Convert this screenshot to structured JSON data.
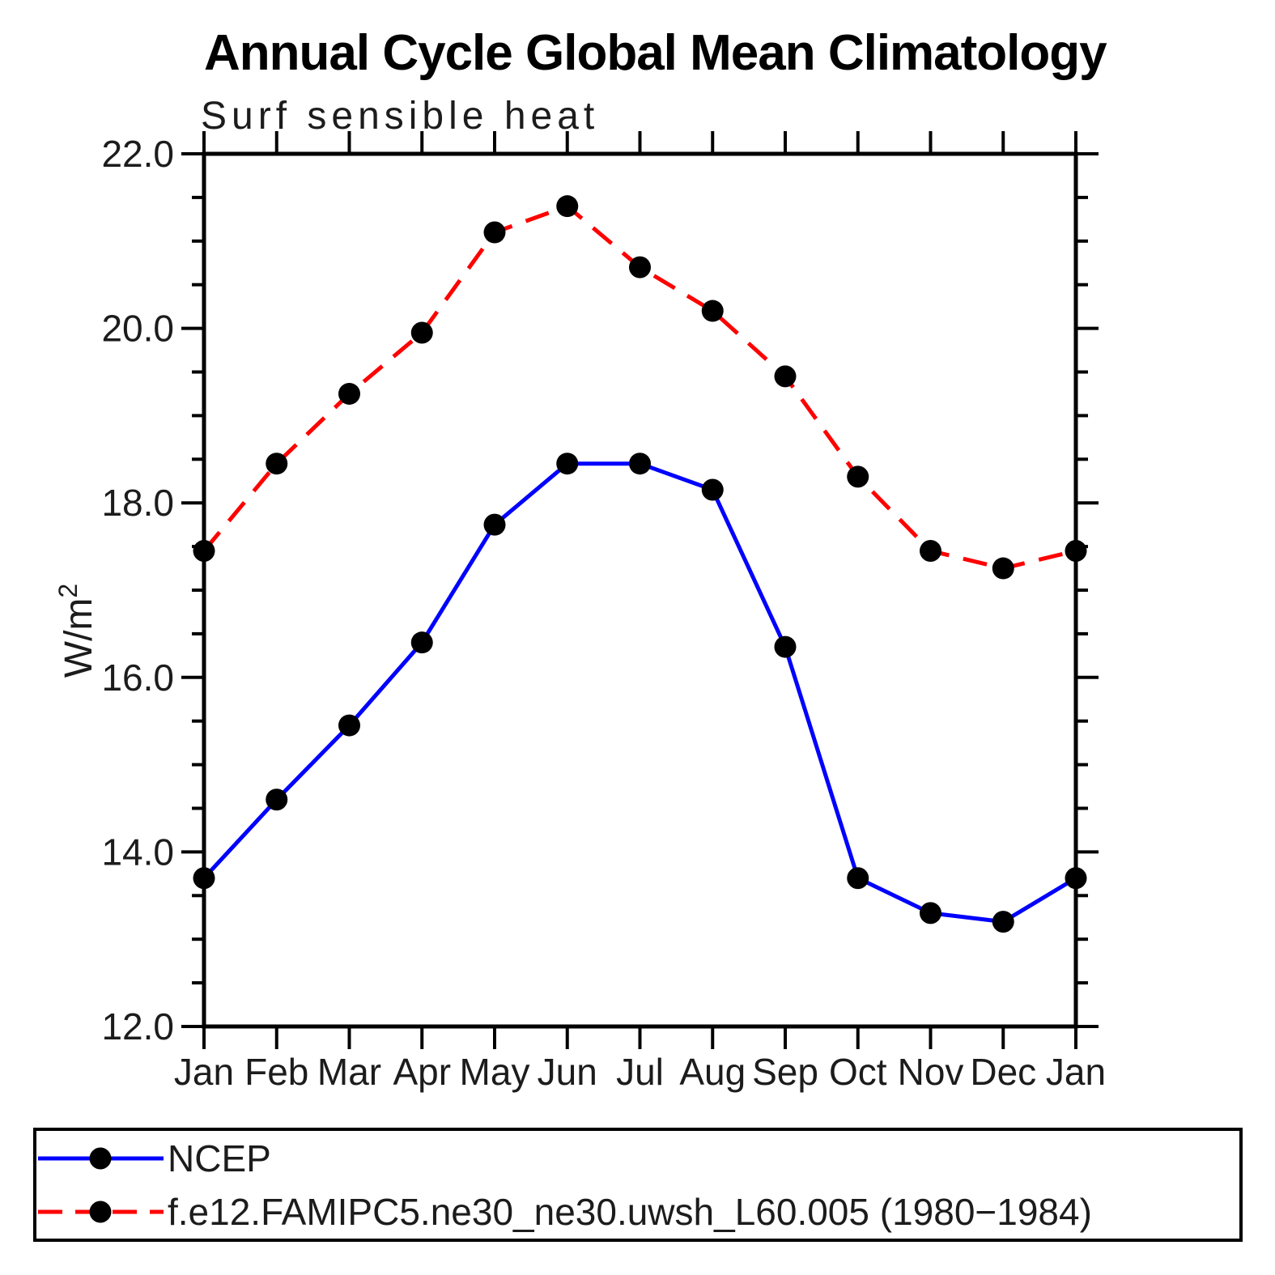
{
  "chart_data": {
    "type": "line",
    "title": "Annual Cycle Global Mean Climatology",
    "subtitle": "Surf sensible heat",
    "ylabel": "W/m",
    "ylabel_superscript": "2",
    "categories": [
      "Jan",
      "Feb",
      "Mar",
      "Apr",
      "May",
      "Jun",
      "Jul",
      "Aug",
      "Sep",
      "Oct",
      "Nov",
      "Dec",
      "Jan"
    ],
    "ylim": [
      12.0,
      22.0
    ],
    "ytick_labels": [
      "12.0",
      "14.0",
      "16.0",
      "18.0",
      "20.0",
      "22.0"
    ],
    "ytick_major_step": 2.0,
    "ytick_minor_step": 0.5,
    "grid": false,
    "legend_position": "bottom",
    "axis_color": "#000000",
    "marker_color": "#000000",
    "series": [
      {
        "name": "NCEP",
        "color": "#0000ff",
        "style": "solid",
        "marker": "circle",
        "values": [
          13.7,
          14.6,
          15.45,
          16.4,
          17.75,
          18.45,
          18.45,
          18.15,
          16.35,
          13.7,
          13.3,
          13.2,
          13.7
        ]
      },
      {
        "name": "f.e12.FAMIPC5.ne30_ne30.uwsh_L60.005 (1980−1984)",
        "color": "#ff0000",
        "style": "dashed",
        "marker": "circle",
        "values": [
          17.45,
          18.45,
          19.25,
          19.95,
          21.1,
          21.4,
          20.7,
          20.2,
          19.45,
          18.3,
          17.45,
          17.25,
          17.45
        ]
      }
    ]
  }
}
